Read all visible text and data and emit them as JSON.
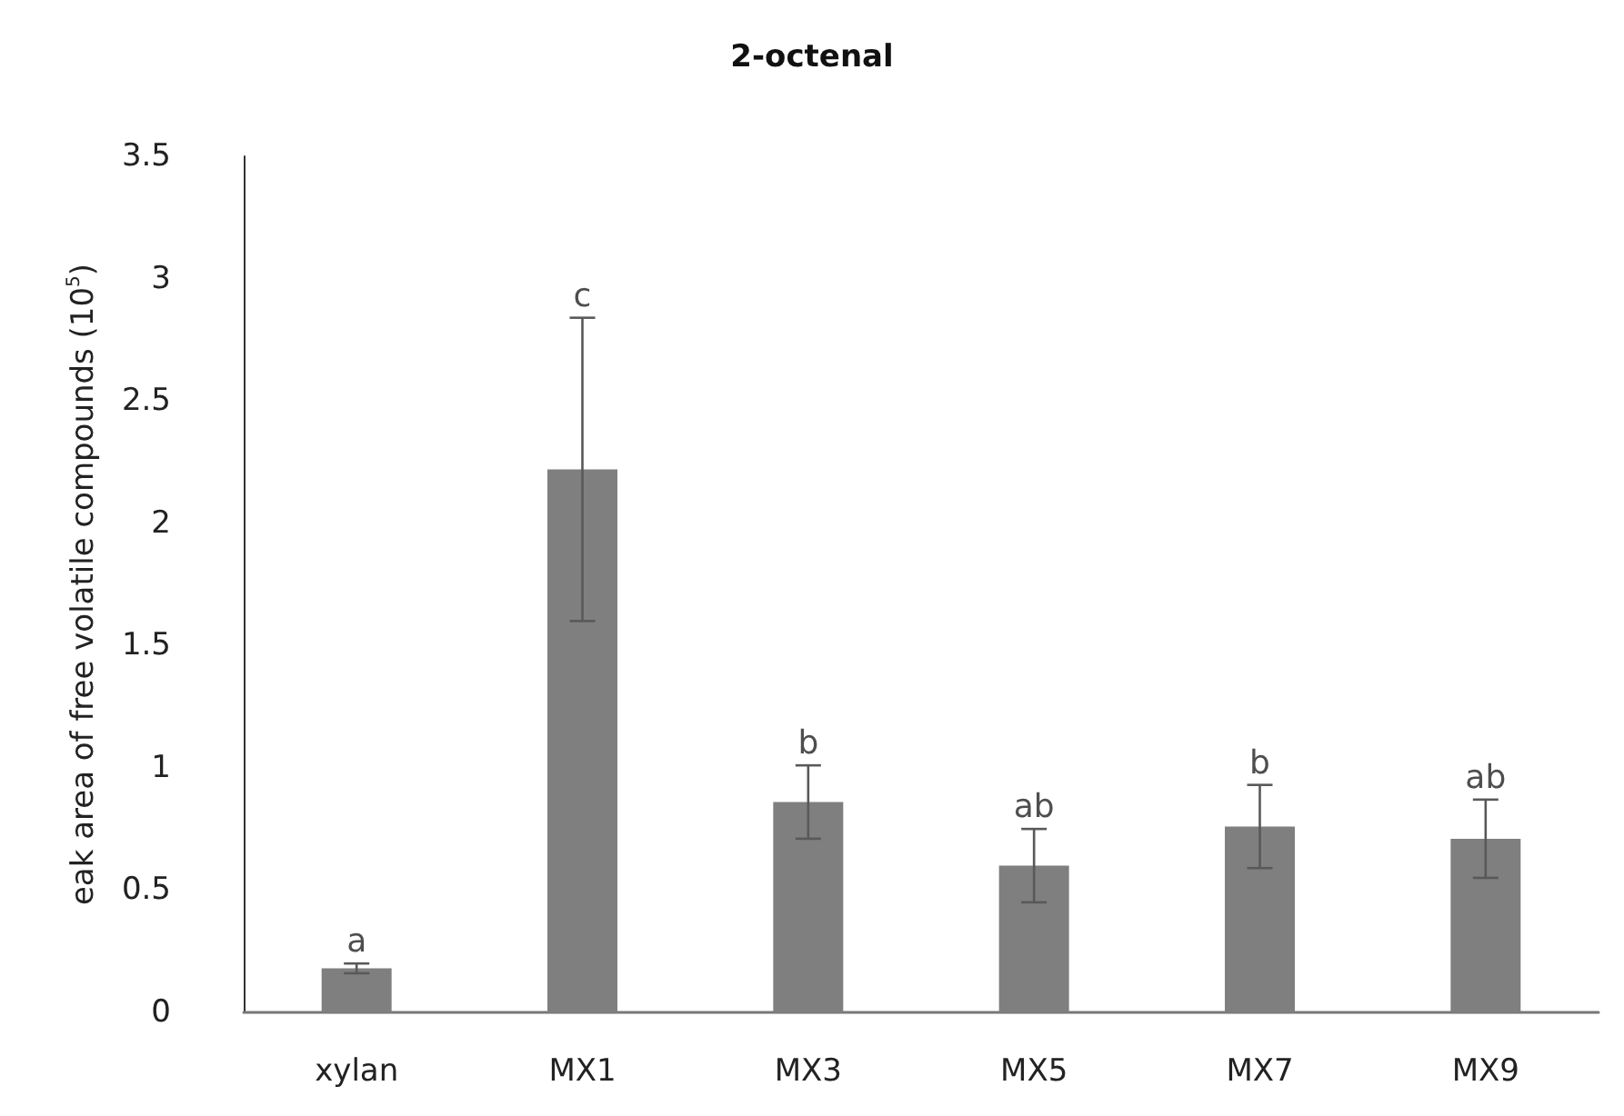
{
  "chart_data": {
    "type": "bar",
    "title": "2-octenal",
    "ylabel": "eak area of free volatile compounds (10$^{5}$)",
    "categories": [
      "xylan",
      "MX1",
      "MX3",
      "MX5",
      "MX7",
      "MX9"
    ],
    "values": [
      0.18,
      2.22,
      0.86,
      0.6,
      0.76,
      0.71
    ],
    "errors": [
      0.02,
      0.62,
      0.15,
      0.15,
      0.17,
      0.16
    ],
    "color": "#7f7f7f",
    "ylim": [
      0,
      3.5
    ],
    "yticks": [
      0,
      0.5,
      1,
      1.5,
      2,
      2.5,
      3,
      3.5
    ],
    "grid": false,
    "annotations": [
      {
        "text": "a",
        "x": "xylan",
        "y": 0.2
      },
      {
        "text": "c",
        "x": "MX1",
        "y": 2.84
      },
      {
        "text": "b",
        "x": "MX3",
        "y": 1.01
      },
      {
        "text": "ab",
        "x": "MX5",
        "y": 0.75
      },
      {
        "text": "b",
        "x": "MX7",
        "y": 0.93
      },
      {
        "text": "ab",
        "x": "MX9",
        "y": 0.87
      }
    ]
  }
}
